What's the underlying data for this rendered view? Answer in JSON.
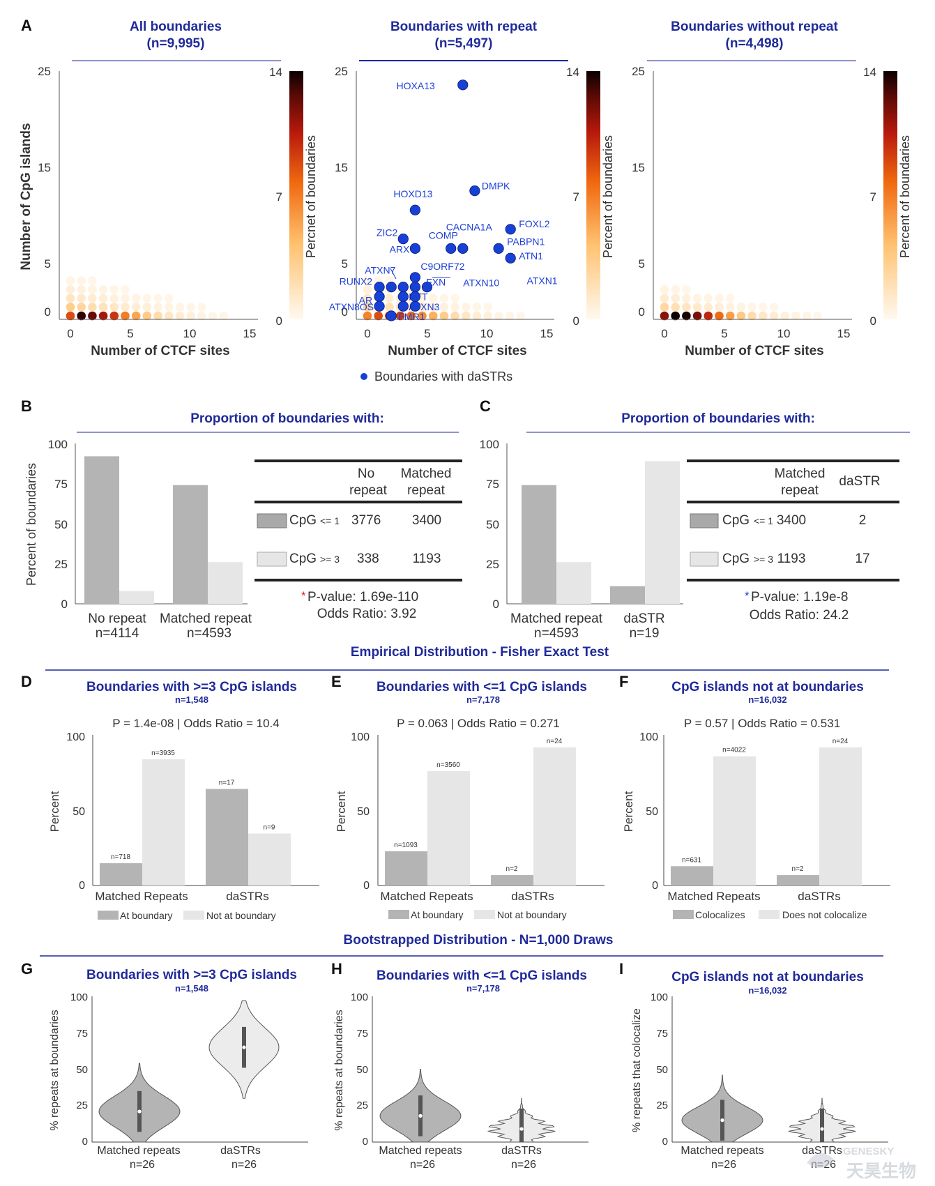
{
  "panel_labels": [
    "A",
    "B",
    "C",
    "D",
    "E",
    "F",
    "G",
    "H",
    "I"
  ],
  "panel_a": {
    "plots": [
      {
        "title": "All boundaries",
        "subtitle": "(n=9,995)",
        "cbar_label": "Percnet of boundaries"
      },
      {
        "title": "Boundaries with repeat",
        "subtitle": "(n=5,497)",
        "cbar_label": "Percent of boundaries"
      },
      {
        "title": "Boundaries without repeat",
        "subtitle": "(n=4,498)",
        "cbar_label": "Percent of boundaries"
      }
    ],
    "xlabel": "Number of CTCF sites",
    "ylabel": "Number of CpG islands",
    "xticks": [
      "0",
      "5",
      "10",
      "15"
    ],
    "yticks": [
      "0",
      "5",
      "15",
      "25"
    ],
    "cbar_ticks": [
      "0",
      "7",
      "14"
    ],
    "legend": "Boundaries with daSTRs",
    "colors": {
      "title": "#1f2a9a",
      "dot": "#1741d6",
      "label": "#1d3fd8"
    }
  },
  "chart_data": [
    {
      "panel": "A-repeat",
      "type": "scatter",
      "title": "Boundaries with repeat",
      "xlabel": "Number of CTCF sites",
      "ylabel": "Number of CpG islands",
      "xlim": [
        0,
        15
      ],
      "ylim": [
        0,
        25
      ],
      "series": [
        {
          "name": "Boundaries with daSTRs",
          "points": [
            {
              "label": "HOXA13",
              "x": 8,
              "y": 24
            },
            {
              "label": "DMPK",
              "x": 9,
              "y": 13
            },
            {
              "label": "HOXD13",
              "x": 4,
              "y": 11
            },
            {
              "label": "FOXL2",
              "x": 12,
              "y": 9
            },
            {
              "label": "ZIC2",
              "x": 3,
              "y": 8
            },
            {
              "label": "ARX",
              "x": 4,
              "y": 7
            },
            {
              "label": "CACNA1A",
              "x": 7,
              "y": 7
            },
            {
              "label": "COMP",
              "x": 8,
              "y": 7
            },
            {
              "label": "PABPN1",
              "x": 11,
              "y": 7
            },
            {
              "label": "ATN1",
              "x": 12,
              "y": 6
            },
            {
              "label": "C9ORF72",
              "x": 4,
              "y": 4
            },
            {
              "label": "ATXN7",
              "x": 4,
              "y": 3
            },
            {
              "label": "RUNX2",
              "x": 1,
              "y": 3
            },
            {
              "label": "FXN",
              "x": 2,
              "y": 3
            },
            {
              "label": "ATXN10",
              "x": 3,
              "y": 3
            },
            {
              "label": "ATXN1",
              "x": 5,
              "y": 3
            },
            {
              "label": "AR",
              "x": 1,
              "y": 2
            },
            {
              "label": "HTT",
              "x": 3,
              "y": 2
            },
            {
              "label": "ATXN8OS",
              "x": 1,
              "y": 1
            },
            {
              "label": "ATXN3",
              "x": 3,
              "y": 1
            },
            {
              "label": "",
              "x": 4,
              "y": 1
            },
            {
              "label": "",
              "x": 4,
              "y": 2
            },
            {
              "label": "FMR1",
              "x": 2,
              "y": 0
            }
          ]
        }
      ]
    },
    {
      "panel": "B",
      "type": "bar",
      "categories": [
        "No repeat",
        "Matched repeat"
      ],
      "category_sublabels": [
        "n=4114",
        "n=4593"
      ],
      "ylabel": "Percent of boundaries",
      "ylim": [
        0,
        100
      ],
      "series": [
        {
          "name": "CpG <= 1",
          "values": [
            92,
            74
          ]
        },
        {
          "name": "CpG >= 3",
          "values": [
            8,
            26
          ]
        }
      ]
    },
    {
      "panel": "C",
      "type": "bar",
      "categories": [
        "Matched repeat",
        "daSTR"
      ],
      "category_sublabels": [
        "n=4593",
        "n=19"
      ],
      "ylim": [
        0,
        100
      ],
      "series": [
        {
          "name": "CpG <= 1",
          "values": [
            74,
            11
          ]
        },
        {
          "name": "CpG >= 3",
          "values": [
            26,
            89
          ]
        }
      ]
    },
    {
      "panel": "D",
      "type": "bar",
      "title": "Boundaries with >=3 CpG islands",
      "ylabel": "Percent",
      "ylim": [
        0,
        100
      ],
      "categories": [
        "Matched Repeats",
        "daSTRs"
      ],
      "series": [
        {
          "name": "At boundary",
          "values": [
            15,
            65
          ],
          "labels": [
            "n=718",
            "n=17"
          ]
        },
        {
          "name": "Not at boundary",
          "values": [
            85,
            35
          ],
          "labels": [
            "n=3935",
            "n=9"
          ]
        }
      ]
    },
    {
      "panel": "E",
      "type": "bar",
      "title": "Boundaries with <=1 CpG islands",
      "ylabel": "Percent",
      "ylim": [
        0,
        100
      ],
      "categories": [
        "Matched Repeats",
        "daSTRs"
      ],
      "series": [
        {
          "name": "At boundary",
          "values": [
            23,
            7
          ],
          "labels": [
            "n=1093",
            "n=2"
          ]
        },
        {
          "name": "Not at boundary",
          "values": [
            77,
            93
          ],
          "labels": [
            "n=3560",
            "n=24"
          ]
        }
      ]
    },
    {
      "panel": "F",
      "type": "bar",
      "title": "CpG islands not at boundaries",
      "ylabel": "Percent",
      "ylim": [
        0,
        100
      ],
      "categories": [
        "Matched Repeats",
        "daSTRs"
      ],
      "series": [
        {
          "name": "Colocalizes",
          "values": [
            13,
            7
          ],
          "labels": [
            "n=631",
            "n=2"
          ]
        },
        {
          "name": "Does not colocalize",
          "values": [
            87,
            93
          ],
          "labels": [
            "n=4022",
            "n=24"
          ]
        }
      ]
    },
    {
      "panel": "G",
      "type": "violin",
      "ylim": [
        0,
        100
      ],
      "categories": [
        "Matched repeats",
        "daSTRs"
      ],
      "medians": [
        21,
        65
      ],
      "ranges": [
        [
          0,
          54
        ],
        [
          30,
          97
        ]
      ]
    },
    {
      "panel": "H",
      "type": "violin",
      "ylim": [
        0,
        100
      ],
      "categories": [
        "Matched repeats",
        "daSTRs"
      ],
      "medians": [
        18,
        9
      ],
      "ranges": [
        [
          0,
          50
        ],
        [
          0,
          30
        ]
      ]
    },
    {
      "panel": "I",
      "type": "violin",
      "ylim": [
        0,
        100
      ],
      "categories": [
        "Matched repeats",
        "daSTRs"
      ],
      "medians": [
        15,
        9
      ],
      "ranges": [
        [
          0,
          46
        ],
        [
          0,
          30
        ]
      ]
    }
  ],
  "panel_b": {
    "title": "Proportion of boundaries with:",
    "ylabel": "Percent of boundaries",
    "yticks": [
      "0",
      "25",
      "50",
      "75",
      "100"
    ],
    "xcats": [
      "No repeat",
      "Matched repeat"
    ],
    "xsubs": [
      "n=4114",
      "n=4593"
    ],
    "table_head": [
      "No",
      "repeat",
      "Matched",
      "repeat"
    ],
    "rows": [
      {
        "label": "CpG",
        "op": "<= 1",
        "v1": "3776",
        "v2": "3400"
      },
      {
        "label": "CpG",
        "op": ">= 3",
        "v1": "338",
        "v2": "1193"
      }
    ],
    "star": "*",
    "pvalue": "P-value: 1.69e-110",
    "odds": "Odds Ratio: 3.92"
  },
  "panel_c": {
    "title": "Proportion of boundaries with:",
    "yticks": [
      "0",
      "25",
      "50",
      "75",
      "100"
    ],
    "xcats": [
      "Matched repeat",
      "daSTR"
    ],
    "xsubs": [
      "n=4593",
      "n=19"
    ],
    "table_head": [
      "Matched",
      "repeat",
      "daSTR"
    ],
    "rows": [
      {
        "label": "CpG",
        "op": "<= 1",
        "v1": "3400",
        "v2": "2"
      },
      {
        "label": "CpG",
        "op": ">= 3",
        "v1": "1193",
        "v2": "17"
      }
    ],
    "star": "*",
    "pvalue": "P-value: 1.19e-8",
    "odds": "Odds Ratio: 24.2"
  },
  "section_titles": {
    "empirical": "Empirical Distribution - Fisher Exact Test",
    "bootstrap": "Bootstrapped Distribution - N=1,000 Draws"
  },
  "panel_def": [
    {
      "title": "Boundaries with >=3 CpG islands",
      "n": "n=1,548",
      "stat": "P =  1.4e-08 | Odds Ratio = 10.4",
      "legend": [
        "At boundary",
        "Not at boundary"
      ]
    },
    {
      "title": "Boundaries with <=1 CpG islands",
      "n": "n=7,178",
      "stat": "P =  0.063 | Odds Ratio = 0.271",
      "legend": [
        "At boundary",
        "Not at boundary"
      ]
    },
    {
      "title": "CpG islands not at boundaries",
      "n": "n=16,032",
      "stat": "P =  0.57 | Odds Ratio = 0.531",
      "legend": [
        "Colocalizes",
        "Does not colocalize"
      ]
    }
  ],
  "def_ylabel": "Percent",
  "def_yticks": [
    "0",
    "50",
    "100"
  ],
  "def_xcats": [
    "Matched Repeats",
    "daSTRs"
  ],
  "panel_ghi": [
    {
      "title": "Boundaries with >=3 CpG islands",
      "n": "n=1,548",
      "ylabel": "% repeats at boundaries"
    },
    {
      "title": "Boundaries with <=1 CpG islands",
      "n": "n=7,178",
      "ylabel": "% repeats at boundaries"
    },
    {
      "title": "CpG islands not at boundaries",
      "n": "n=16,032",
      "ylabel": "% repeats that colocalize"
    }
  ],
  "ghi_yticks": [
    "0",
    "25",
    "50",
    "75",
    "100"
  ],
  "ghi_xcats": [
    "Matched repeats",
    "daSTRs"
  ],
  "ghi_xsub": "n=26",
  "watermark": {
    "latin": "GENESKY",
    "cjk": "天昊生物"
  },
  "bar_colors": {
    "dark": "#b4b4b4",
    "light": "#e6e6e6"
  }
}
